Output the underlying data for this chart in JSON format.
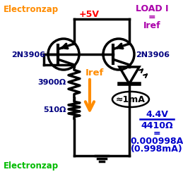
{
  "bg_color": "#ffffff",
  "orange_color": "#ff8c00",
  "title_text": "Electronzap",
  "title2_text": "Electronzap",
  "green_color": "#00bb00",
  "vcc_color": "#ff0000",
  "vcc_text": "+5V",
  "label_2n3906_left": "2N3906",
  "label_2n3906_right": "2N3906",
  "label_color": "#000080",
  "purple_color": "#aa00aa",
  "load_i_text": "LOAD I",
  "eq_text": "=",
  "iref_text_purple": "Iref",
  "iref_text_orange": "Iref",
  "res1_label": "3900Ω",
  "res2_label": "510Ω",
  "approx_1ma_text": "≈1mA",
  "calc_color": "#0000cc",
  "calc_line1": "4.4V",
  "calc_line2": "4410Ω",
  "calc_line3": "=",
  "calc_line4": "0.000998A",
  "calc_line5": "(0.998mA)"
}
